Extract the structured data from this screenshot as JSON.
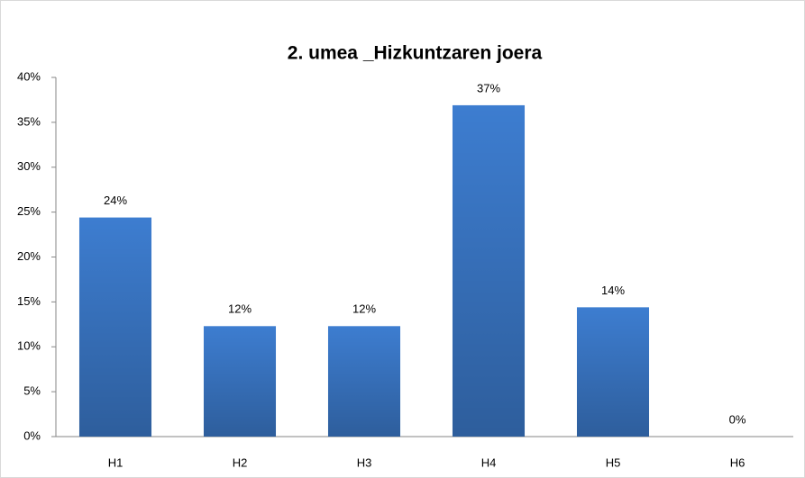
{
  "chart_data": {
    "type": "bar",
    "title": "2. umea _Hizkuntzaren joera",
    "categories": [
      "H1",
      "H2",
      "H3",
      "H4",
      "H5",
      "H6"
    ],
    "values": [
      24.4,
      12.3,
      12.3,
      36.9,
      14.4,
      0
    ],
    "value_labels": [
      "24%",
      "12%",
      "12%",
      "37%",
      "14%",
      "0%"
    ],
    "color": "#3d7dd0",
    "ylim": [
      0,
      40
    ],
    "yticks": [
      {
        "value": 0,
        "label": "0%"
      },
      {
        "value": 5,
        "label": "5%"
      },
      {
        "value": 10,
        "label": "10%"
      },
      {
        "value": 15,
        "label": "15%"
      },
      {
        "value": 20,
        "label": "20%"
      },
      {
        "value": 25,
        "label": "25%"
      },
      {
        "value": 30,
        "label": "30%"
      },
      {
        "value": 35,
        "label": "35%"
      },
      {
        "value": 40,
        "label": "40%"
      }
    ],
    "grid": false
  }
}
